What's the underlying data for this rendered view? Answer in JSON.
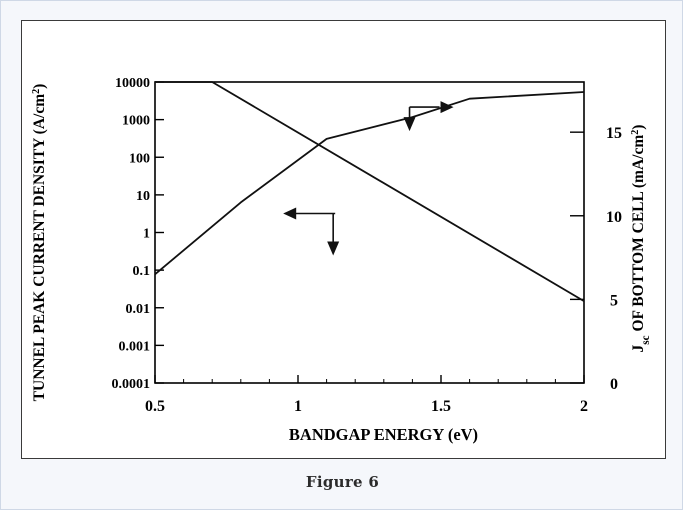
{
  "caption": "Figure 6",
  "chart_data": {
    "type": "line",
    "title": "",
    "xlabel": "BANDGAP ENERGY   (eV)",
    "ylabel_left": {
      "parts": [
        "TUNNEL  PEAK CURRENT DENSITY  (A/cm",
        "2",
        ")"
      ]
    },
    "ylabel_right": {
      "parts": [
        "J",
        "sc",
        " OF BOTTOM CELL   (mA/cm",
        "2",
        ")"
      ]
    },
    "xlim": [
      0.5,
      2.0
    ],
    "x_ticks": [
      0.5,
      1.0,
      1.5,
      2.0
    ],
    "x_tick_labels": [
      "0.5",
      "1",
      "1.5",
      "2"
    ],
    "ylim_left": [
      0.0001,
      10000
    ],
    "y_scale_left": "log",
    "y_ticks_left": [
      0.0001,
      0.001,
      0.01,
      0.1,
      1,
      10,
      100,
      1000,
      10000
    ],
    "y_tick_labels_left": [
      "0.0001",
      "0.001",
      "0.01",
      "0.1",
      "1",
      "10",
      "100",
      "1000",
      "10000"
    ],
    "ylim_right": [
      0,
      18
    ],
    "y_ticks_right": [
      0,
      5,
      10,
      15
    ],
    "y_tick_labels_right": [
      "0",
      "5",
      "10",
      "15"
    ],
    "grid": false,
    "series": [
      {
        "axis": "left",
        "x": [
          0.5,
          0.7,
          2.0
        ],
        "y": [
          10000,
          10000,
          0.015
        ]
      },
      {
        "axis": "right",
        "x": [
          0.5,
          0.8,
          1.1,
          1.4,
          1.6,
          2.0
        ],
        "y": [
          6.5,
          10.8,
          14.6,
          15.9,
          17.0,
          17.4
        ]
      }
    ],
    "annotations": [
      {
        "type": "axis-arrow",
        "points_to": "left-axis",
        "at_x": 1.13,
        "at_y_left": 3.2
      },
      {
        "type": "axis-arrow",
        "points_to": "right-axis",
        "at_x": 1.39,
        "at_y_right": 16.5
      }
    ]
  }
}
